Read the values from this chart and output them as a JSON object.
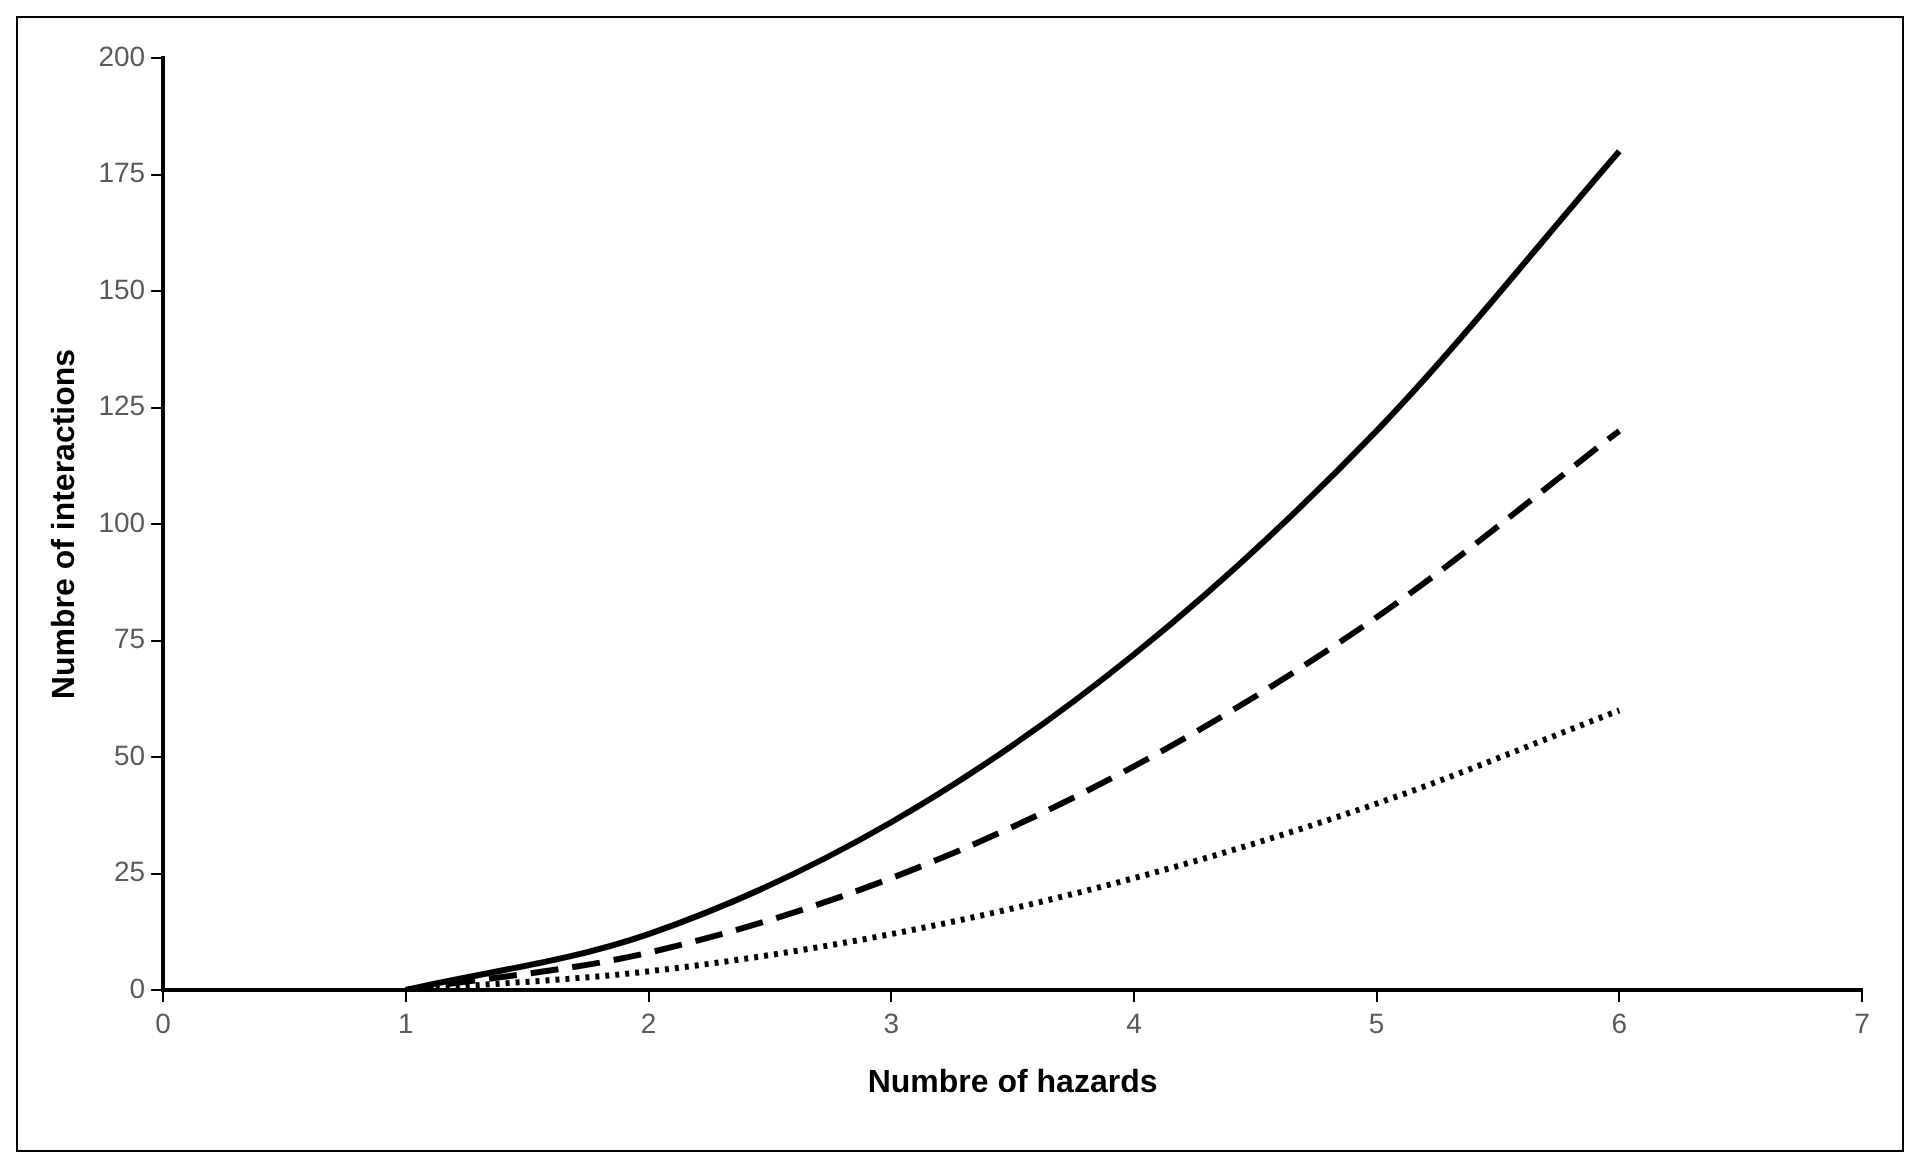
{
  "chart_data": {
    "type": "line",
    "xlabel": "Numbre of hazards",
    "ylabel": "Numbre of interactions",
    "x": [
      1,
      2,
      3,
      4,
      5,
      6
    ],
    "series": [
      {
        "color": "#000000",
        "line_style": "solid",
        "values": [
          0,
          12,
          36,
          72,
          120,
          180
        ]
      },
      {
        "color": "#000000",
        "line_style": "dashed",
        "values": [
          0,
          8,
          24,
          48,
          80,
          120
        ]
      },
      {
        "color": "#000000",
        "line_style": "dotted",
        "values": [
          0,
          4,
          12,
          24,
          40,
          60
        ]
      }
    ],
    "xlim": [
      0,
      7
    ],
    "xticks": [
      0,
      1,
      2,
      3,
      4,
      5,
      6,
      7
    ],
    "ylim": [
      0,
      200
    ],
    "yticks": [
      0,
      25,
      50,
      75,
      100,
      125,
      150,
      175,
      200
    ],
    "marker": "none",
    "legend": false,
    "grid": false
  }
}
